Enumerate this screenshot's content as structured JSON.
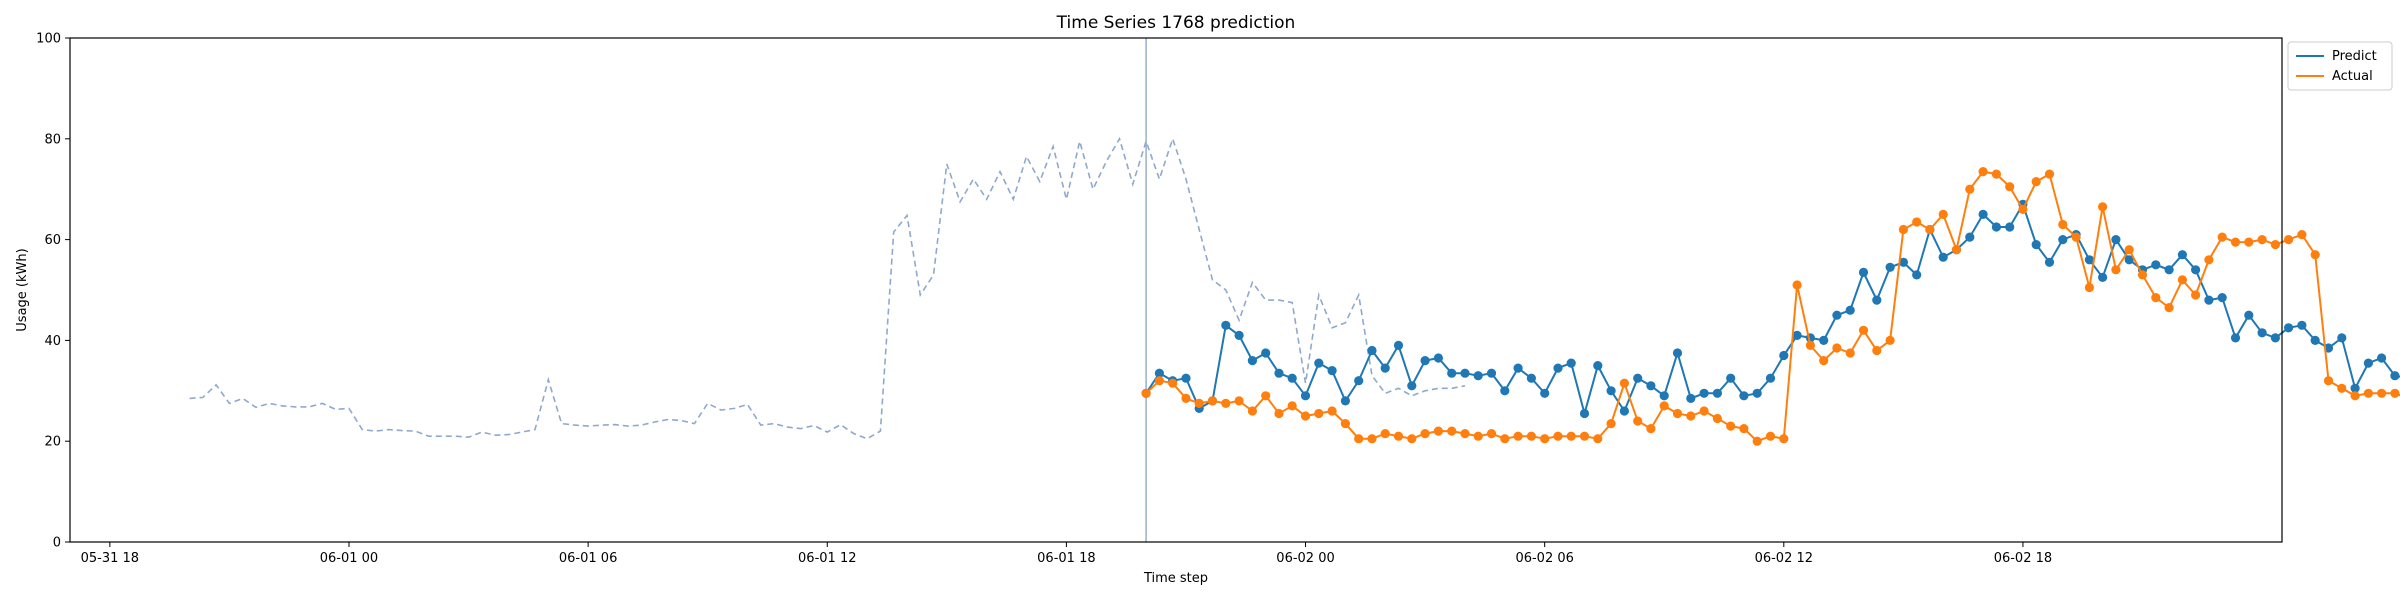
{
  "chart_data": {
    "type": "line",
    "title": "Time Series 1768 prediction",
    "xlabel": "Time step",
    "ylabel": "Usage (kWh)",
    "ylim": [
      0,
      100
    ],
    "yticks": [
      0,
      20,
      40,
      60,
      80,
      100
    ],
    "x_axis": {
      "kind": "datetime",
      "start": "2024-05-31 17:00",
      "end": "2024-06-03 00:30",
      "ticks": [
        {
          "t": "2024-05-31 18:00",
          "label": "05-31 18"
        },
        {
          "t": "2024-06-01 00:00",
          "label": "06-01 00"
        },
        {
          "t": "2024-06-01 06:00",
          "label": "06-01 06"
        },
        {
          "t": "2024-06-01 12:00",
          "label": "06-01 12"
        },
        {
          "t": "2024-06-01 18:00",
          "label": "06-01 18"
        },
        {
          "t": "2024-06-02 00:00",
          "label": "06-02 00"
        },
        {
          "t": "2024-06-02 06:00",
          "label": "06-02 06"
        },
        {
          "t": "2024-06-02 12:00",
          "label": "06-02 12"
        },
        {
          "t": "2024-06-02 18:00",
          "label": "06-02 18"
        }
      ]
    },
    "grid": false,
    "legend_position": "upper right, outside plot",
    "forecast_start": "2024-06-01 20:00",
    "history": {
      "start": "2024-05-31 20:00",
      "step_minutes": 20,
      "color": "#8fa9cc",
      "values": [
        28.5,
        28.7,
        31.2,
        27.5,
        28.5,
        26.7,
        27.5,
        27,
        26.8,
        26.8,
        27.5,
        26.3,
        26.5,
        22.3,
        22,
        22.3,
        22.1,
        22,
        21,
        21,
        21,
        20.8,
        21.8,
        21.2,
        21.3,
        21.8,
        22.3,
        32.2,
        23.5,
        23.2,
        23,
        23.2,
        23.3,
        23,
        23.2,
        23.8,
        24.3,
        24.1,
        23.5,
        27.5,
        26.2,
        26.5,
        27.3,
        23.2,
        23.5,
        22.8,
        22.5,
        23.1,
        21.8,
        23.3,
        21.5,
        20.5,
        22,
        61.5,
        64.8,
        49,
        53,
        75,
        67.5,
        72,
        68,
        73.5,
        68,
        76.5,
        71.5,
        78.5,
        68,
        79.5,
        70,
        75.5,
        80,
        71,
        79.5,
        72,
        80,
        72,
        62,
        52,
        50,
        44,
        51.5,
        48,
        48,
        47.5,
        31.5,
        49,
        42.5,
        43.5,
        49,
        33,
        29.5,
        30.5,
        29,
        30,
        30.5,
        30.5,
        31
      ]
    },
    "series": [
      {
        "name": "Predict",
        "color": "#1f77b4",
        "start": "2024-06-01 20:00",
        "step_minutes": 20,
        "values": [
          29.5,
          33.5,
          32,
          32.5,
          26.5,
          28,
          43,
          41,
          36,
          37.5,
          33.5,
          32.5,
          29,
          35.5,
          34,
          28,
          32,
          38,
          34.5,
          39,
          31,
          36,
          36.5,
          33.5,
          33.5,
          33,
          33.5,
          30,
          34.5,
          32.5,
          29.5,
          34.5,
          35.5,
          25.5,
          35,
          30,
          26,
          32.5,
          31,
          29,
          37.5,
          28.5,
          29.5,
          29.5,
          32.5,
          29,
          29.5,
          32.5,
          37,
          41,
          40.5,
          40,
          45,
          46,
          53.5,
          48,
          54.5,
          55.5,
          53,
          62,
          56.5,
          58,
          60.5,
          65,
          62.5,
          62.5,
          67,
          59,
          55.5,
          60,
          61,
          56,
          52.5,
          60,
          56,
          54,
          55,
          54,
          57,
          54,
          48,
          48.5,
          40.5,
          45,
          41.5,
          40.5,
          42.5,
          43,
          40,
          38.5,
          40.5,
          30.5,
          35.5,
          36.5,
          33,
          32.5
        ]
      },
      {
        "name": "Actual",
        "color": "#ff7f0e",
        "start": "2024-06-01 20:00",
        "step_minutes": 20,
        "values": [
          29.5,
          32,
          31.5,
          28.5,
          27.5,
          28,
          27.5,
          28,
          26,
          29,
          25.5,
          27,
          25,
          25.5,
          26,
          23.5,
          20.5,
          20.5,
          21.5,
          21,
          20.5,
          21.5,
          22,
          22,
          21.5,
          21,
          21.5,
          20.5,
          21,
          21,
          20.5,
          21,
          21,
          21,
          20.5,
          23.5,
          31.5,
          24,
          22.5,
          27,
          25.5,
          25,
          26,
          24.5,
          23,
          22.5,
          20,
          21,
          20.5,
          51,
          39,
          36,
          38.5,
          37.5,
          42,
          38,
          40,
          62,
          63.5,
          62,
          65,
          58,
          70,
          73.5,
          73,
          70.5,
          66,
          71.5,
          73,
          63,
          60.5,
          50.5,
          66.5,
          54,
          58,
          53,
          48.5,
          46.5,
          52,
          49,
          56,
          60.5,
          59.5,
          59.5,
          60,
          59,
          60,
          61,
          57,
          32,
          30.5,
          29,
          29.5,
          29.5,
          29.5,
          28.5
        ]
      }
    ]
  }
}
